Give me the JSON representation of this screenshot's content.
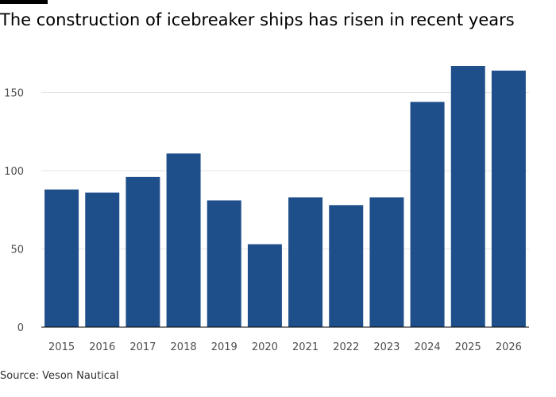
{
  "title": "The construction of icebreaker ships has risen in recent years",
  "source": "Source: Veson Nautical",
  "colors": {
    "bar": "#1e4f8a",
    "grid": "#e5e5e5",
    "baseline": "#000000",
    "tick_text": "#4d4d4d"
  },
  "chart_data": {
    "type": "bar",
    "title": "The construction of icebreaker ships has risen in recent years",
    "xlabel": "",
    "ylabel": "",
    "categories": [
      "2015",
      "2016",
      "2017",
      "2018",
      "2019",
      "2020",
      "2021",
      "2022",
      "2023",
      "2024",
      "2025",
      "2026"
    ],
    "values": [
      88,
      86,
      96,
      111,
      81,
      53,
      83,
      78,
      83,
      144,
      167,
      164
    ],
    "ylim": [
      0,
      170
    ],
    "yticks": [
      0,
      50,
      100,
      150
    ],
    "grid": true
  }
}
